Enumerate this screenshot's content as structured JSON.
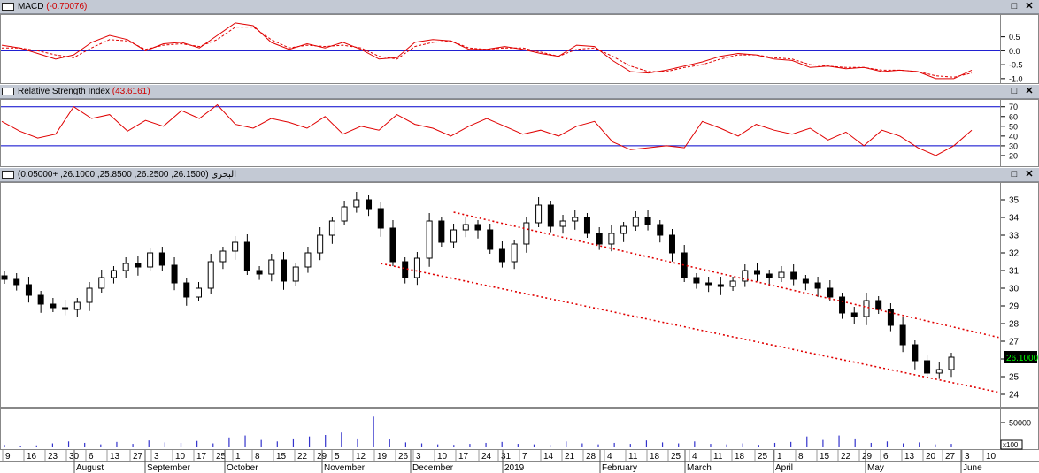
{
  "panels": {
    "macd": {
      "name": "MACD",
      "value": "(-0.70076)"
    },
    "rsi": {
      "name": "Relative Strength Index",
      "value": "(43.6161)"
    },
    "price": {
      "name": "البحري",
      "value": "(26.1500, 26.2500, 25.8500, 26.1000, +0.05000)"
    }
  },
  "window_controls": {
    "maximize_glyph": "□",
    "close_glyph": "✕"
  },
  "icons": {
    "panel": "window-icon",
    "maximize": "maximize-icon",
    "close": "close-icon"
  },
  "colors": {
    "up": "#ffffff",
    "down": "#000000",
    "line": "#e00000",
    "level": "#0000cc",
    "volume": "#3333cc",
    "last_price_bg": "#000000",
    "last_price_fg": "#00ff00"
  },
  "chart_data": [
    {
      "type": "line",
      "name": "macd",
      "ylim": [
        -1.1,
        1.25
      ],
      "ticks": [
        "0.5",
        "0.0",
        "-0.5",
        "-1.0"
      ],
      "tick_values": [
        0.5,
        0.0,
        -0.5,
        -1.0
      ],
      "reference_line": 0,
      "macd": [
        0.2,
        0.1,
        -0.1,
        -0.3,
        -0.15,
        0.3,
        0.55,
        0.4,
        0.0,
        0.25,
        0.3,
        0.1,
        0.55,
        1.0,
        0.9,
        0.3,
        0.05,
        0.25,
        0.1,
        0.3,
        0.05,
        -0.3,
        -0.25,
        0.3,
        0.4,
        0.35,
        0.05,
        0.05,
        0.15,
        0.05,
        -0.1,
        -0.2,
        0.2,
        0.15,
        -0.35,
        -0.75,
        -0.8,
        -0.7,
        -0.55,
        -0.4,
        -0.2,
        -0.1,
        -0.15,
        -0.3,
        -0.35,
        -0.6,
        -0.55,
        -0.65,
        -0.6,
        -0.75,
        -0.7,
        -0.75,
        -1.0,
        -1.0,
        -0.7
      ],
      "signal": [
        0.1,
        0.1,
        0.0,
        -0.15,
        -0.25,
        0.1,
        0.4,
        0.35,
        0.05,
        0.2,
        0.25,
        0.15,
        0.4,
        0.85,
        0.85,
        0.4,
        0.1,
        0.2,
        0.15,
        0.2,
        0.1,
        -0.2,
        -0.3,
        0.15,
        0.3,
        0.35,
        0.1,
        0.05,
        0.1,
        0.1,
        -0.05,
        -0.2,
        0.05,
        0.1,
        -0.2,
        -0.55,
        -0.75,
        -0.75,
        -0.6,
        -0.5,
        -0.3,
        -0.15,
        -0.15,
        -0.25,
        -0.3,
        -0.5,
        -0.55,
        -0.6,
        -0.6,
        -0.7,
        -0.7,
        -0.75,
        -0.9,
        -0.95,
        -0.8
      ]
    },
    {
      "type": "line",
      "name": "rsi",
      "ylim": [
        10,
        77
      ],
      "ticks": [
        "70",
        "60",
        "50",
        "40",
        "30",
        "20"
      ],
      "tick_values": [
        70,
        60,
        50,
        40,
        30,
        20
      ],
      "levels": [
        70,
        30
      ],
      "values": [
        55,
        45,
        38,
        42,
        70,
        58,
        62,
        45,
        56,
        50,
        66,
        58,
        72,
        52,
        48,
        58,
        54,
        48,
        60,
        42,
        50,
        46,
        62,
        52,
        48,
        40,
        50,
        58,
        50,
        42,
        46,
        40,
        50,
        55,
        34,
        26,
        28,
        30,
        28,
        55,
        48,
        40,
        52,
        46,
        42,
        48,
        36,
        44,
        30,
        46,
        40,
        28,
        20,
        30,
        46
      ]
    },
    {
      "type": "candlestick",
      "name": "price",
      "ylim": [
        23.4,
        35.9
      ],
      "ticks": [
        "35",
        "34",
        "33",
        "32",
        "31",
        "30",
        "29",
        "28",
        "27",
        "26",
        "25",
        "24"
      ],
      "tick_values": [
        35,
        34,
        33,
        32,
        31,
        30,
        29,
        28,
        27,
        26,
        25,
        24
      ],
      "last_price": "26.1000",
      "closes": [
        30.5,
        30.2,
        29.6,
        29.1,
        28.9,
        28.8,
        29.2,
        30.0,
        30.6,
        31.0,
        31.4,
        31.2,
        32.0,
        31.3,
        30.3,
        29.5,
        30.0,
        31.5,
        32.1,
        32.6,
        31.0,
        30.8,
        31.6,
        30.4,
        31.2,
        32.0,
        33.0,
        33.8,
        34.6,
        35.0,
        34.5,
        33.4,
        31.5,
        30.6,
        31.7,
        33.8,
        32.6,
        33.3,
        33.6,
        33.3,
        32.2,
        31.5,
        32.5,
        33.7,
        34.7,
        33.5,
        33.8,
        34.0,
        33.1,
        32.5,
        33.1,
        33.5,
        34.0,
        33.6,
        33.0,
        32.0,
        30.6,
        30.3,
        30.2,
        30.1,
        30.4,
        31.0,
        30.8,
        30.6,
        30.9,
        30.5,
        30.3,
        30.0,
        29.5,
        28.6,
        28.4,
        29.3,
        28.8,
        27.9,
        26.8,
        25.9,
        25.2,
        25.4,
        26.1
      ],
      "trend_lines": [
        {
          "from": [
            37,
            34.3
          ],
          "to": [
            82,
            27.2
          ]
        },
        {
          "from": [
            31,
            31.4
          ],
          "to": [
            82,
            24.1
          ]
        }
      ]
    },
    {
      "type": "bar",
      "name": "volume",
      "tick": "50000",
      "unit": "x100",
      "ylim": [
        0,
        75000
      ],
      "values": [
        5000,
        3000,
        4000,
        8000,
        12000,
        9000,
        6000,
        11000,
        7000,
        14000,
        10000,
        9000,
        13000,
        8000,
        20000,
        24000,
        15000,
        12000,
        18000,
        22000,
        25000,
        30000,
        18000,
        62000,
        16000,
        10000,
        8000,
        6000,
        5000,
        7000,
        9000,
        11000,
        7000,
        6000,
        5000,
        12000,
        8000,
        6000,
        9000,
        7000,
        14000,
        10000,
        8000,
        12000,
        7000,
        6000,
        8000,
        5000,
        9000,
        11000,
        22000,
        15000,
        24000,
        18000,
        9000,
        12000,
        8000,
        10000,
        6000,
        7000
      ]
    }
  ],
  "x_axis": {
    "days": [
      "9",
      "16",
      "23",
      "30",
      "6",
      "13",
      "27",
      "3",
      "10",
      "17",
      "25",
      "1",
      "8",
      "15",
      "22",
      "29",
      "5",
      "12",
      "19",
      "26",
      "3",
      "10",
      "17",
      "24",
      "31",
      "7",
      "14",
      "21",
      "28",
      "4",
      "11",
      "18",
      "25",
      "4",
      "11",
      "18",
      "25",
      "1",
      "8",
      "15",
      "22",
      "29",
      "6",
      "13",
      "20",
      "27",
      "3",
      "10"
    ],
    "months": [
      "August",
      "September",
      "October",
      "November",
      "December",
      "2019",
      "February",
      "March",
      "April",
      "May",
      "June"
    ]
  }
}
